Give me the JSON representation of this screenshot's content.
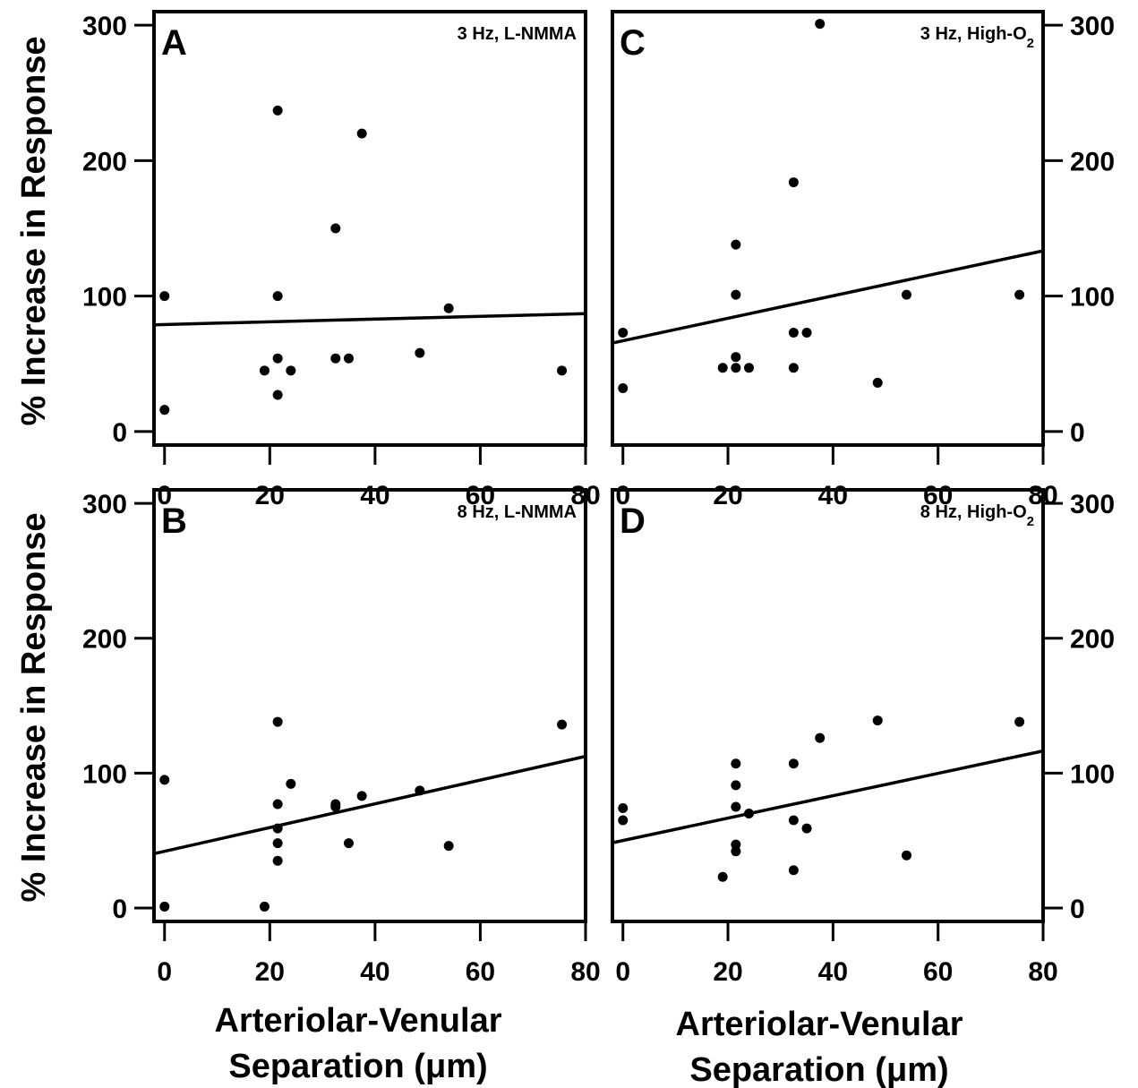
{
  "figure": {
    "ylabel": "% Increase in Response",
    "xlabel_line1": "Arteriolar-Venular",
    "xlabel_line2": "Separation (μm)"
  },
  "chart_data": [
    {
      "type": "scatter",
      "panel": "A",
      "condition": "3 Hz, L-NMMA",
      "xlabel": "Arteriolar-Venular Separation (μm)",
      "ylabel": "% Increase in Response",
      "xlim": [
        -2,
        80
      ],
      "ylim": [
        -10,
        310
      ],
      "xticks": [
        0,
        20,
        40,
        60,
        80
      ],
      "yticks": [
        0,
        100,
        200,
        300
      ],
      "points": [
        [
          0,
          100
        ],
        [
          0,
          16
        ],
        [
          19,
          45
        ],
        [
          21.5,
          237
        ],
        [
          21.5,
          100
        ],
        [
          21.5,
          54
        ],
        [
          21.5,
          27
        ],
        [
          24,
          45
        ],
        [
          32.5,
          150
        ],
        [
          32.5,
          54
        ],
        [
          35,
          54
        ],
        [
          37.5,
          220
        ],
        [
          48.5,
          58
        ],
        [
          54,
          91
        ],
        [
          75.5,
          45
        ]
      ],
      "fit_line": {
        "intercept": 79,
        "slope": 0.1
      }
    },
    {
      "type": "scatter",
      "panel": "B",
      "condition": "8 Hz, L-NMMA",
      "xlabel": "Arteriolar-Venular Separation (μm)",
      "ylabel": "% Increase in Response",
      "xlim": [
        -2,
        80
      ],
      "ylim": [
        -10,
        310
      ],
      "xticks": [
        0,
        20,
        40,
        60,
        80
      ],
      "yticks": [
        0,
        100,
        200,
        300
      ],
      "points": [
        [
          0,
          95
        ],
        [
          0,
          1
        ],
        [
          19,
          1
        ],
        [
          21.5,
          138
        ],
        [
          21.5,
          77
        ],
        [
          21.5,
          59
        ],
        [
          21.5,
          48
        ],
        [
          21.5,
          35
        ],
        [
          24,
          92
        ],
        [
          32.5,
          77
        ],
        [
          32.5,
          75
        ],
        [
          35,
          48
        ],
        [
          37.5,
          83
        ],
        [
          48.5,
          87
        ],
        [
          54,
          46
        ],
        [
          75.5,
          136
        ]
      ],
      "fit_line": {
        "intercept": 42,
        "slope": 0.88
      }
    },
    {
      "type": "scatter",
      "panel": "C",
      "condition": "3 Hz, High-O2",
      "xlabel": "Arteriolar-Venular Separation (μm)",
      "ylabel": "% Increase in Response",
      "xlim": [
        -2,
        80
      ],
      "ylim": [
        -10,
        310
      ],
      "xticks": [
        0,
        20,
        40,
        60,
        80
      ],
      "yticks": [
        0,
        100,
        200,
        300
      ],
      "points": [
        [
          0,
          73
        ],
        [
          0,
          32
        ],
        [
          19,
          47
        ],
        [
          21.5,
          138
        ],
        [
          21.5,
          101
        ],
        [
          21.5,
          55
        ],
        [
          21.5,
          47
        ],
        [
          24,
          47
        ],
        [
          32.5,
          184
        ],
        [
          32.5,
          73
        ],
        [
          32.5,
          47
        ],
        [
          35,
          73
        ],
        [
          37.5,
          301
        ],
        [
          48.5,
          36
        ],
        [
          54,
          101
        ],
        [
          75.5,
          101
        ]
      ],
      "fit_line": {
        "intercept": 67,
        "slope": 0.83
      }
    },
    {
      "type": "scatter",
      "panel": "D",
      "condition": "8 Hz, High-O2",
      "xlabel": "Arteriolar-Venular Separation (μm)",
      "ylabel": "% Increase in Response",
      "xlim": [
        -2,
        80
      ],
      "ylim": [
        -10,
        310
      ],
      "xticks": [
        0,
        20,
        40,
        60,
        80
      ],
      "yticks": [
        0,
        100,
        200,
        300
      ],
      "points": [
        [
          0,
          74
        ],
        [
          0,
          65
        ],
        [
          19,
          23
        ],
        [
          21.5,
          107
        ],
        [
          21.5,
          91
        ],
        [
          21.5,
          75
        ],
        [
          21.5,
          47
        ],
        [
          21.5,
          42
        ],
        [
          24,
          70
        ],
        [
          32.5,
          107
        ],
        [
          32.5,
          65
        ],
        [
          32.5,
          28
        ],
        [
          35,
          59
        ],
        [
          37.5,
          126
        ],
        [
          48.5,
          139
        ],
        [
          54,
          39
        ],
        [
          75.5,
          138
        ]
      ],
      "fit_line": {
        "intercept": 50,
        "slope": 0.83
      }
    }
  ]
}
